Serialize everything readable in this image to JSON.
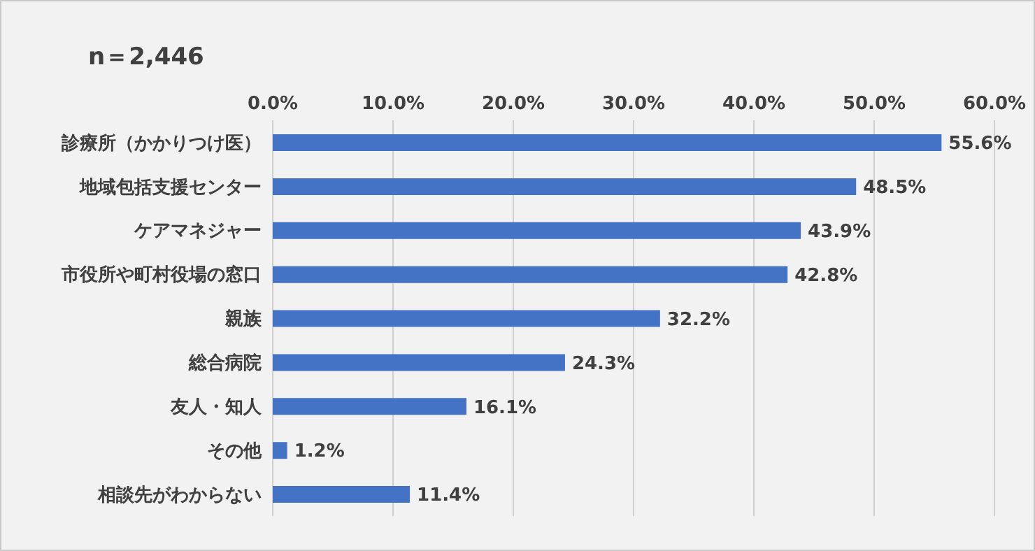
{
  "chart_data": {
    "type": "bar",
    "orientation": "horizontal",
    "annotations": [
      "n＝2,446"
    ],
    "categories": [
      "診療所（かかりつけ医）",
      "地域包括支援センター",
      "ケアマネジャー",
      "市役所や町村役場の窓口",
      "親族",
      "総合病院",
      "友人・知人",
      "その他",
      "相談先がわからない"
    ],
    "values": [
      55.6,
      48.5,
      43.9,
      42.8,
      32.2,
      24.3,
      16.1,
      1.2,
      11.4
    ],
    "value_labels": [
      "55.6%",
      "48.5%",
      "43.9%",
      "42.8%",
      "32.2%",
      "24.3%",
      "16.1%",
      "1.2%",
      "11.4%"
    ],
    "color": "#4472c4",
    "xlim": [
      0,
      60
    ],
    "xticks": [
      {
        "value": 0,
        "label": "0.0%"
      },
      {
        "value": 10,
        "label": "10.0%"
      },
      {
        "value": 20,
        "label": "20.0%"
      },
      {
        "value": 30,
        "label": "30.0%"
      },
      {
        "value": 40,
        "label": "40.0%"
      },
      {
        "value": 50,
        "label": "50.0%"
      },
      {
        "value": 60,
        "label": "60.0%"
      }
    ],
    "grid": "x"
  }
}
